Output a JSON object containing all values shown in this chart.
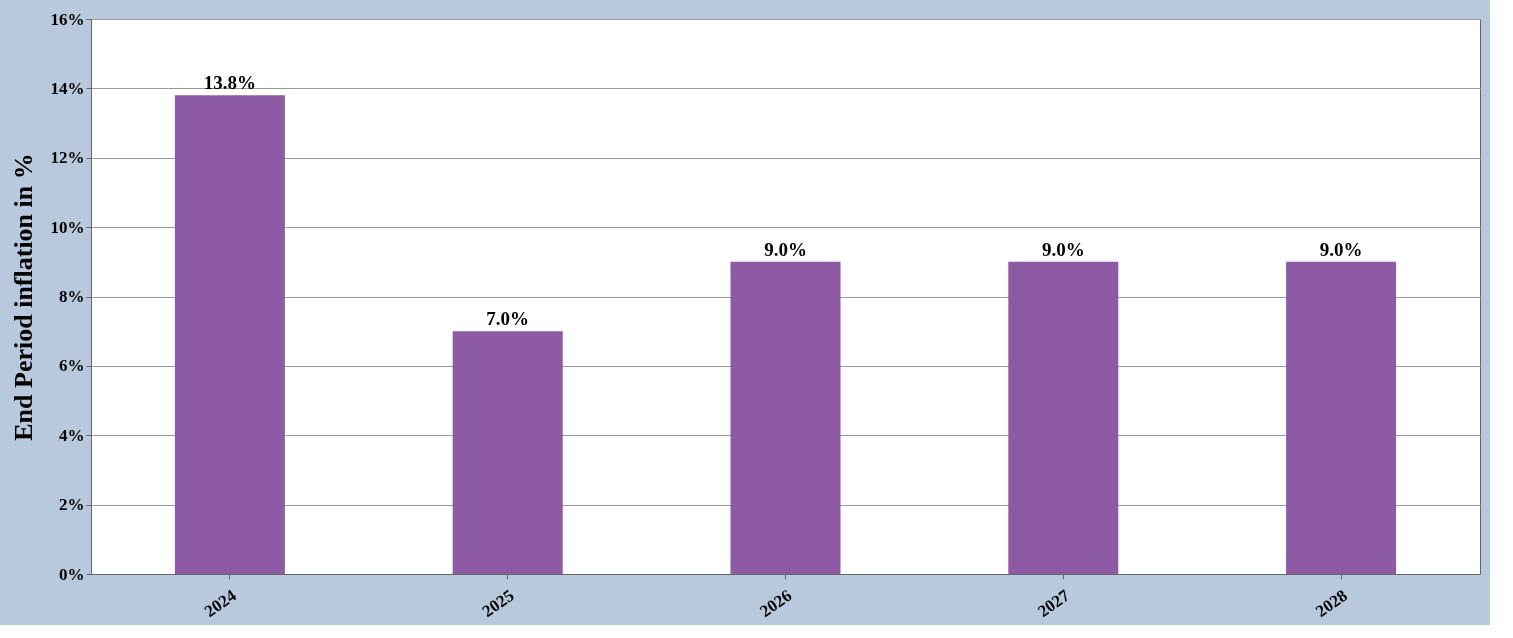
{
  "chart_data": {
    "type": "bar",
    "ylabel": "End Period inflation in %",
    "categories": [
      "2024",
      "2025",
      "2026",
      "2027",
      "2028"
    ],
    "values": [
      13.8,
      7.0,
      9.0,
      9.0,
      9.0
    ],
    "value_labels": [
      "13.8%",
      "7.0%",
      "9.0%",
      "9.0%",
      "9.0%"
    ],
    "color": "#8e5aa6",
    "ylim": [
      0,
      16
    ],
    "yticks": [
      {
        "value": 0,
        "label": "0%"
      },
      {
        "value": 2,
        "label": "2%"
      },
      {
        "value": 4,
        "label": "4%"
      },
      {
        "value": 6,
        "label": "6%"
      },
      {
        "value": 8,
        "label": "8%"
      },
      {
        "value": 10,
        "label": "10%"
      },
      {
        "value": 12,
        "label": "12%"
      },
      {
        "value": 14,
        "label": "14%"
      },
      {
        "value": 16,
        "label": "16%"
      }
    ],
    "grid": "y"
  }
}
